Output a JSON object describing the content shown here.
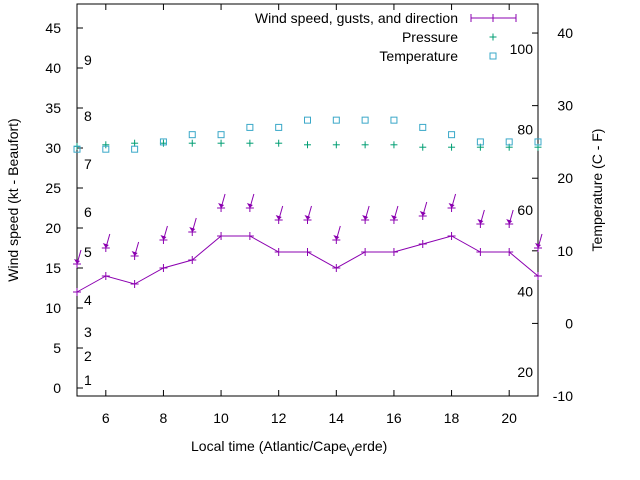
{
  "chart_data": {
    "type": "line",
    "xlabel_main": "Local time (Atlantic/Cape",
    "xlabel_sub": "V",
    "xlabel_tail": "erde)",
    "ylabel": "Wind speed (kt - Beaufort)",
    "y2label": "Temperature (C - F)",
    "xlim": [
      5,
      21
    ],
    "ylim": [
      -1,
      48
    ],
    "y2lim": [
      -10,
      44
    ],
    "x_ticks": [
      6,
      8,
      10,
      12,
      14,
      16,
      18,
      20
    ],
    "y_ticks": [
      0,
      5,
      10,
      15,
      20,
      25,
      30,
      35,
      40,
      45
    ],
    "y2_ticks": [
      -10,
      0,
      10,
      20,
      30,
      40
    ],
    "beaufort_labels": [
      {
        "label": "1",
        "kt": 1
      },
      {
        "label": "2",
        "kt": 4
      },
      {
        "label": "3",
        "kt": 7
      },
      {
        "label": "4",
        "kt": 11
      },
      {
        "label": "5",
        "kt": 17
      },
      {
        "label": "6",
        "kt": 22
      },
      {
        "label": "7",
        "kt": 28
      },
      {
        "label": "8",
        "kt": 34
      },
      {
        "label": "9",
        "kt": 41
      }
    ],
    "fahrenheit_labels": [
      {
        "label": "20",
        "celsius": -6.7
      },
      {
        "label": "40",
        "celsius": 4.4
      },
      {
        "label": "60",
        "celsius": 15.6
      },
      {
        "label": "80",
        "celsius": 26.7
      },
      {
        "label": "100",
        "celsius": 37.8
      }
    ],
    "legend": [
      {
        "label": "Wind speed, gusts, and direction",
        "color": "#8b00b0"
      },
      {
        "label": "Pressure",
        "color": "#009e73"
      },
      {
        "label": "Temperature",
        "color": "#3aa8c8"
      }
    ],
    "series": [
      {
        "name": "Wind speed",
        "x": [
          5,
          6,
          7,
          8,
          9,
          10,
          11,
          12,
          13,
          14,
          15,
          16,
          17,
          18,
          19,
          20,
          21
        ],
        "values": [
          12,
          14,
          13,
          15,
          16,
          19,
          19,
          17,
          17,
          15,
          17,
          17,
          18,
          19,
          17,
          17,
          14
        ]
      },
      {
        "name": "Gusts",
        "x": [
          5,
          6,
          7,
          8,
          9,
          10,
          11,
          12,
          13,
          14,
          15,
          16,
          17,
          18,
          19,
          20,
          21
        ],
        "values": [
          15.5,
          17.5,
          16.5,
          18.5,
          19.5,
          22.5,
          22.5,
          21,
          21,
          18.5,
          21,
          21,
          21.5,
          22.5,
          20.5,
          20.5,
          17.5
        ]
      },
      {
        "name": "Pressure",
        "x": [
          5,
          6,
          7,
          8,
          9,
          10,
          11,
          12,
          13,
          14,
          15,
          16,
          17,
          18,
          19,
          20,
          21
        ],
        "values": [
          30.2,
          30.4,
          30.6,
          30.6,
          30.6,
          30.6,
          30.6,
          30.6,
          30.4,
          30.4,
          30.4,
          30.4,
          30.1,
          30.1,
          30.1,
          30.1,
          30.1
        ]
      },
      {
        "name": "Temperature",
        "x": [
          5,
          6,
          7,
          8,
          9,
          10,
          11,
          12,
          13,
          14,
          15,
          16,
          17,
          18,
          19,
          20,
          21
        ],
        "values": [
          24,
          24,
          24,
          25,
          26,
          26,
          27,
          27,
          28,
          28,
          28,
          28,
          27,
          26,
          25,
          25,
          25
        ]
      }
    ]
  }
}
